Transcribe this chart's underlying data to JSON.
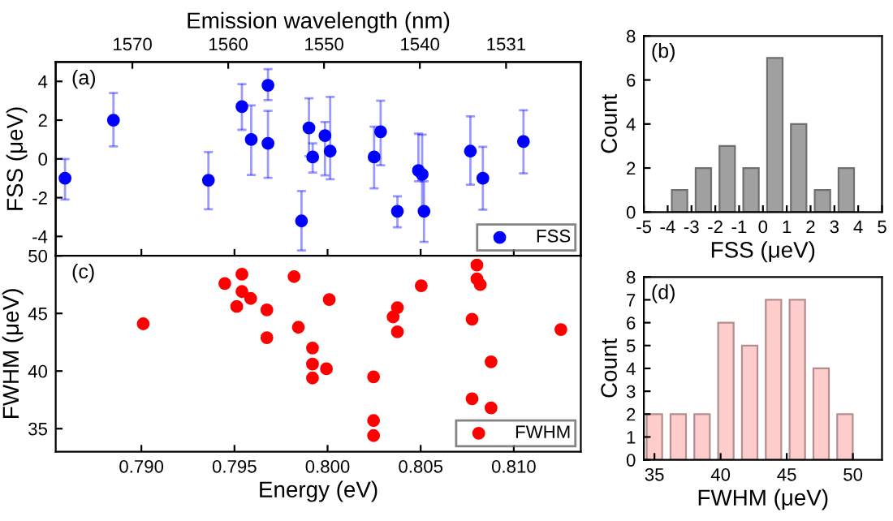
{
  "chart_data": [
    {
      "type": "scatter",
      "x2label": "Emission wavelength (nm)",
      "ylabel": "FSS (μeV)",
      "annotations": [
        "(a)"
      ],
      "xlim": [
        0.7854,
        0.8136
      ],
      "ylim": [
        -5,
        5
      ],
      "yticks": [
        -4,
        -2,
        0,
        2,
        4
      ],
      "x2lim": [
        1578.0,
        1523.2
      ],
      "x2ticks": [
        1570,
        1560,
        1550,
        1540,
        1531
      ],
      "tick_labels": "y",
      "legend": "bottom right",
      "marker": "circle",
      "grid": false,
      "series": [
        {
          "name": "FSS",
          "color": "#0000ff",
          "x": [
            0.7859,
            0.7885,
            0.7936,
            0.7954,
            0.7959,
            0.7968,
            0.7968,
            0.7986,
            0.799,
            0.7992,
            0.79986,
            0.80014,
            0.8025,
            0.80285,
            0.80375,
            0.80488,
            0.80508,
            0.80518,
            0.80767,
            0.80834,
            0.81052
          ],
          "values": [
            -1.0,
            2.0,
            -1.1,
            2.7,
            1.0,
            3.8,
            0.8,
            -3.2,
            1.6,
            0.1,
            1.2,
            0.4,
            0.1,
            1.4,
            -2.7,
            -0.6,
            -0.8,
            -2.7,
            0.4,
            -1.0,
            0.9
          ],
          "errors": [
            [
              -2.1,
              0.0
            ],
            [
              0.65,
              3.4
            ],
            [
              -2.6,
              0.35
            ],
            [
              1.5,
              3.86
            ],
            [
              -0.83,
              2.76
            ],
            [
              3.03,
              4.63
            ],
            [
              -0.98,
              2.48
            ],
            [
              -4.72,
              -1.66
            ],
            [
              0.14,
              3.13
            ],
            [
              -0.7,
              0.8
            ],
            [
              -0.85,
              1.9
            ],
            [
              -1.05,
              3.2
            ],
            [
              -1.52,
              1.66
            ],
            [
              -0.33,
              3.0
            ],
            [
              -3.53,
              -1.93
            ],
            [
              -1.15,
              1.3
            ],
            [
              -2.6,
              1.25
            ],
            [
              -4.28,
              -1.15
            ],
            [
              -1.33,
              2.2
            ],
            [
              -2.62,
              0.63
            ],
            [
              -0.75,
              2.51
            ]
          ]
        }
      ]
    },
    {
      "type": "histogram",
      "xlabel": "FSS (μeV)",
      "ylabel": "Count",
      "annotations": [
        "(b)"
      ],
      "color": "#a0a0a0",
      "bins": [
        -4,
        -3,
        -2,
        -1,
        0,
        1,
        2,
        3,
        4
      ],
      "values": [
        1,
        2,
        3,
        2,
        7,
        4,
        1,
        2
      ],
      "xlim": [
        -5,
        5
      ],
      "xticks": [
        -5,
        -4,
        -3,
        -2,
        -1,
        0,
        1,
        2,
        3,
        4,
        5
      ],
      "ylim": [
        0,
        8
      ],
      "yticks": [
        0,
        2,
        4,
        6,
        8
      ],
      "grid": false
    },
    {
      "type": "scatter",
      "xlabel": "Energy (eV)",
      "ylabel": "FWHM (μeV)",
      "annotations": [
        "(c)"
      ],
      "xlim": [
        0.7854,
        0.8136
      ],
      "xticks": [
        {
          "value": 0.79,
          "label": "0.790"
        },
        {
          "value": 0.795,
          "label": "0.795"
        },
        {
          "value": 0.8,
          "label": "0.800"
        },
        {
          "value": 0.805,
          "label": "0.805"
        },
        {
          "value": 0.81,
          "label": "0.810"
        }
      ],
      "ylim": [
        33,
        50
      ],
      "yticks": [
        35,
        40,
        45,
        50
      ],
      "legend": "bottom right",
      "marker": "circle",
      "grid": false,
      "series": [
        {
          "name": "FWHM",
          "color": "#ff0000",
          "x": [
            0.7901,
            0.79448,
            0.79512,
            0.7954,
            0.7954,
            0.79587,
            0.79674,
            0.79674,
            0.7982,
            0.79843,
            0.79919,
            0.79919,
            0.79919,
            0.79994,
            0.80009,
            0.80247,
            0.80247,
            0.80247,
            0.80352,
            0.80375,
            0.80375,
            0.80503,
            0.80776,
            0.80776,
            0.80802,
            0.80802,
            0.8082,
            0.80878,
            0.80878,
            0.81253
          ],
          "values": [
            44.1,
            47.6,
            45.6,
            48.4,
            46.9,
            46.3,
            45.3,
            42.9,
            48.2,
            43.8,
            42.0,
            40.6,
            39.4,
            40.2,
            46.2,
            39.5,
            35.7,
            34.4,
            44.7,
            45.5,
            43.4,
            47.4,
            44.5,
            37.6,
            49.2,
            48.0,
            47.5,
            40.8,
            36.8,
            43.6
          ]
        }
      ]
    },
    {
      "type": "histogram",
      "xlabel": "FWHM (μeV)",
      "ylabel": "Count",
      "annotations": [
        "(d)"
      ],
      "color": "#ffcccc",
      "bins": [
        34.1,
        35.9,
        37.7,
        39.5,
        41.3,
        43.1,
        44.9,
        46.7,
        48.5,
        50.3
      ],
      "values": [
        2,
        2,
        2,
        6,
        5,
        7,
        7,
        4,
        2
      ],
      "xlim": [
        34.2,
        52.2
      ],
      "xticks": [
        35,
        40,
        45,
        50
      ],
      "ylim": [
        0,
        8
      ],
      "yticks": [
        0,
        1,
        2,
        3,
        4,
        5,
        6,
        7,
        8
      ],
      "grid": false
    }
  ]
}
